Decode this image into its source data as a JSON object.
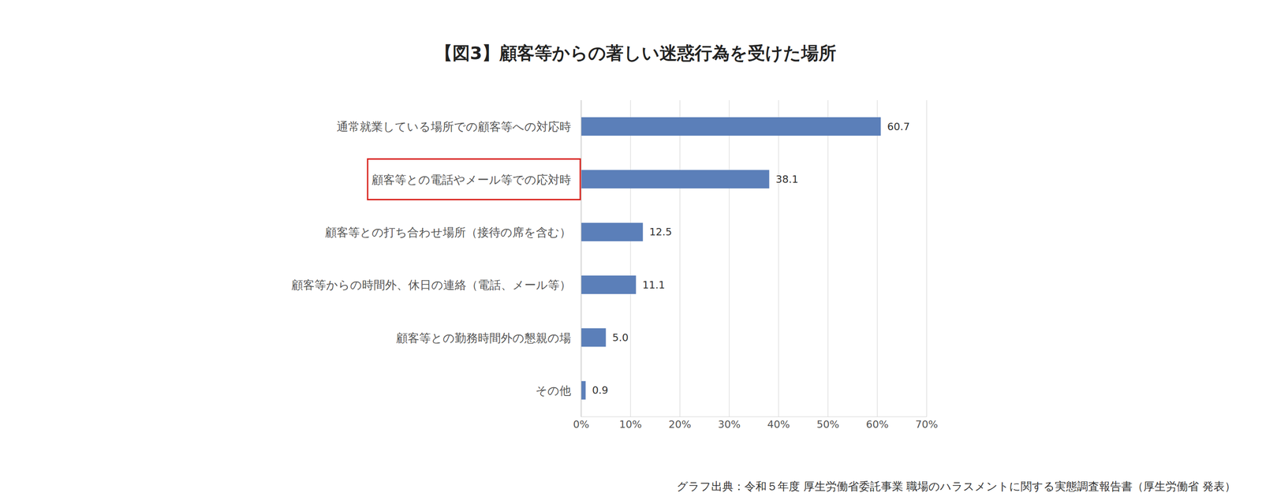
{
  "chart_data": {
    "type": "bar",
    "title": "【図3】顧客等からの著しい迷惑行為を受けた場所",
    "source": "グラフ出典：令和５年度 厚生労働省委託事業 職場のハラスメントに関する実態調査報告書（厚生労働省 発表）",
    "orientation": "horizontal",
    "categories": [
      "通常就業している場所での顧客等への対応時",
      "顧客等との電話やメール等での応対時",
      "顧客等との打ち合わせ場所（接待の席を含む）",
      "顧客等からの時間外、休日の連絡（電話、メール等）",
      "顧客等との勤務時間外の懇親の場",
      "その他"
    ],
    "values": [
      60.7,
      38.1,
      12.5,
      11.1,
      5.0,
      0.9
    ],
    "value_labels": [
      "60.7",
      "38.1",
      "12.5",
      "11.1",
      "5.0",
      "0.9"
    ],
    "color": "#5b7fb9",
    "xlim": [
      0,
      70
    ],
    "xticks": [
      {
        "value": 0,
        "label": "0%"
      },
      {
        "value": 10,
        "label": "10%"
      },
      {
        "value": 20,
        "label": "20%"
      },
      {
        "value": 30,
        "label": "30%"
      },
      {
        "value": 40,
        "label": "40%"
      },
      {
        "value": 50,
        "label": "50%"
      },
      {
        "value": 60,
        "label": "60%"
      },
      {
        "value": 70,
        "label": "70%"
      }
    ],
    "grid": true,
    "data_labels": true
  }
}
